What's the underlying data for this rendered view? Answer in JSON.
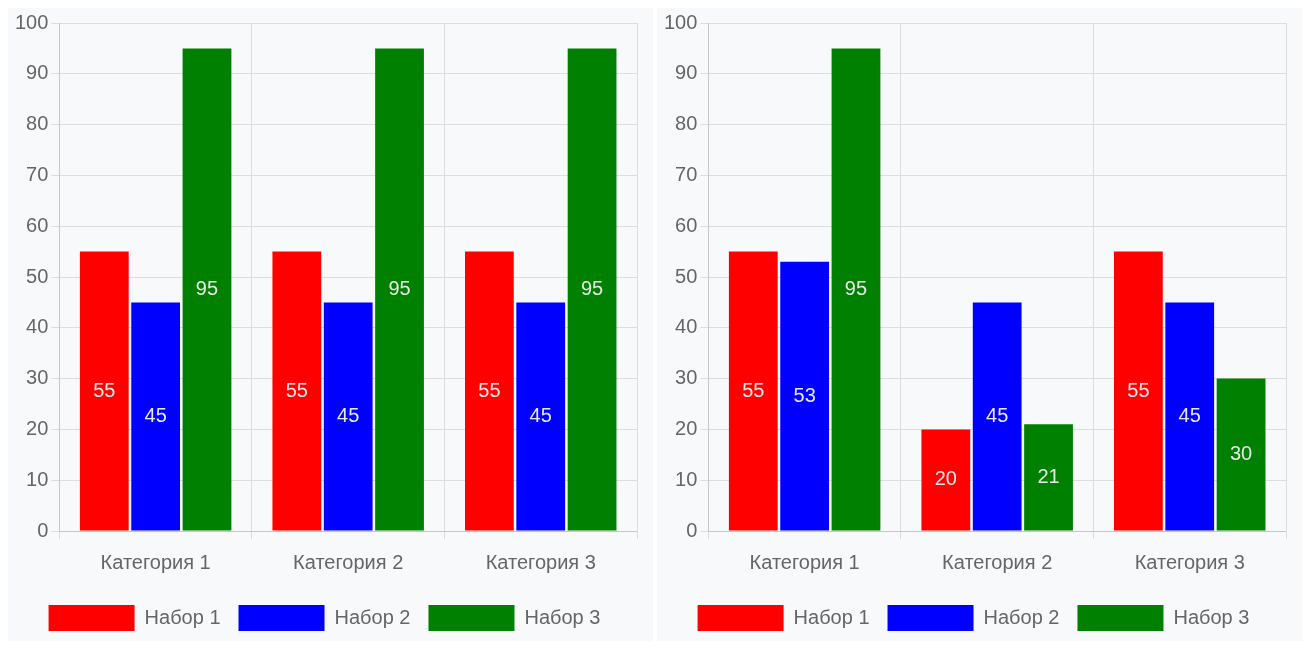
{
  "chart_data": [
    {
      "type": "bar",
      "categories": [
        "Категория 1",
        "Категория 2",
        "Категория 3"
      ],
      "series": [
        {
          "name": "Набор 1",
          "color": "#ff0000",
          "values": [
            55,
            55,
            55
          ]
        },
        {
          "name": "Набор 2",
          "color": "#0000ff",
          "values": [
            45,
            45,
            45
          ]
        },
        {
          "name": "Набор 3",
          "color": "#008000",
          "values": [
            95,
            95,
            95
          ]
        }
      ],
      "ylim": [
        0,
        100
      ],
      "yticks": [
        0,
        10,
        20,
        30,
        40,
        50,
        60,
        70,
        80,
        90,
        100
      ],
      "grid": true,
      "legend": "bottom",
      "data_labels": true
    },
    {
      "type": "bar",
      "categories": [
        "Категория 1",
        "Категория 2",
        "Категория 3"
      ],
      "series": [
        {
          "name": "Набор 1",
          "color": "#ff0000",
          "values": [
            55,
            20,
            55
          ]
        },
        {
          "name": "Набор 2",
          "color": "#0000ff",
          "values": [
            53,
            45,
            45
          ]
        },
        {
          "name": "Набор 3",
          "color": "#008000",
          "values": [
            95,
            21,
            30
          ]
        }
      ],
      "ylim": [
        0,
        100
      ],
      "yticks": [
        0,
        10,
        20,
        30,
        40,
        50,
        60,
        70,
        80,
        90,
        100
      ],
      "grid": true,
      "legend": "bottom",
      "data_labels": true
    }
  ]
}
